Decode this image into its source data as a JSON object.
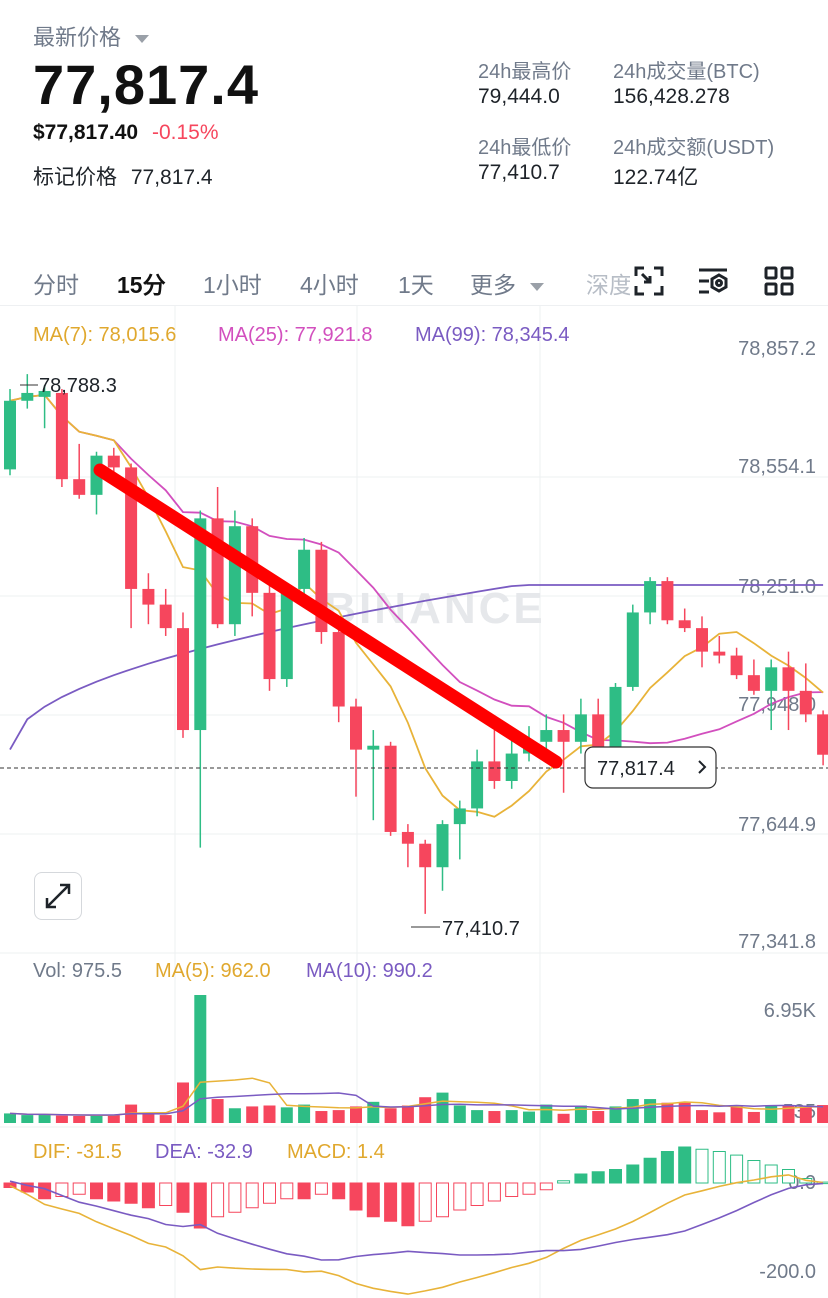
{
  "header": {
    "label": "最新价格",
    "last_price": "77,817.4",
    "usd_price": "$77,817.40",
    "change_pct": "-0.15%",
    "mark_label": "标记价格",
    "mark_price": "77,817.4"
  },
  "stats": {
    "high_label": "24h最高价",
    "high_value": "79,444.0",
    "vol_btc_label": "24h成交量(BTC)",
    "vol_btc_value": "156,428.278",
    "low_label": "24h最低价",
    "low_value": "77,410.7",
    "vol_usdt_label": "24h成交额(USDT)",
    "vol_usdt_value": "122.74亿"
  },
  "tabs": {
    "t1": "分时",
    "t2": "15分",
    "t3": "1小时",
    "t4": "4小时",
    "t5": "1天",
    "more": "更多",
    "depth": "深度"
  },
  "icons": [
    "fullscreen-icon",
    "indicator-settings-icon",
    "layout-grid-icon",
    "expand-icon",
    "chevron-right-icon",
    "caret-down-icon"
  ],
  "colors": {
    "up": "#2ebd85",
    "down": "#f6465d",
    "ma_short": "#e8b339",
    "ma_mid": "#d24fbe",
    "ma_long": "#7a5bc2",
    "trendline": "#ff0000"
  },
  "watermark": "BINANCE",
  "chart_data": {
    "type": "candlestick",
    "price_axis_ticks": [
      "78,857.2",
      "78,554.1",
      "78,251.0",
      "77,948.0",
      "77,644.9",
      "77,341.8"
    ],
    "ma_legend": {
      "ma7": "MA(7): 78,015.6",
      "ma25": "MA(25): 77,921.8",
      "ma99": "MA(99): 78,345.4"
    },
    "high_marker": "78,788.3",
    "low_marker": "77,410.7",
    "current_price_tag": "77,817.4",
    "candles": [
      {
        "o": 78545,
        "h": 78750,
        "l": 78530,
        "c": 78720
      },
      {
        "o": 78720,
        "h": 78788,
        "l": 78700,
        "c": 78740
      },
      {
        "o": 78730,
        "h": 78760,
        "l": 78650,
        "c": 78745
      },
      {
        "o": 78740,
        "h": 78750,
        "l": 78500,
        "c": 78520
      },
      {
        "o": 78520,
        "h": 78610,
        "l": 78470,
        "c": 78480
      },
      {
        "o": 78480,
        "h": 78590,
        "l": 78430,
        "c": 78580
      },
      {
        "o": 78580,
        "h": 78600,
        "l": 78520,
        "c": 78550
      },
      {
        "o": 78550,
        "h": 78560,
        "l": 78140,
        "c": 78240
      },
      {
        "o": 78240,
        "h": 78280,
        "l": 78150,
        "c": 78200
      },
      {
        "o": 78200,
        "h": 78240,
        "l": 78120,
        "c": 78140
      },
      {
        "o": 78140,
        "h": 78180,
        "l": 77860,
        "c": 77880
      },
      {
        "o": 77880,
        "h": 78440,
        "l": 77580,
        "c": 78420
      },
      {
        "o": 78420,
        "h": 78500,
        "l": 78140,
        "c": 78150
      },
      {
        "o": 78150,
        "h": 78440,
        "l": 78120,
        "c": 78400
      },
      {
        "o": 78400,
        "h": 78420,
        "l": 78170,
        "c": 78230
      },
      {
        "o": 78230,
        "h": 78280,
        "l": 77980,
        "c": 78010
      },
      {
        "o": 78010,
        "h": 78250,
        "l": 77990,
        "c": 78240
      },
      {
        "o": 78240,
        "h": 78370,
        "l": 78220,
        "c": 78340
      },
      {
        "o": 78340,
        "h": 78360,
        "l": 78100,
        "c": 78130
      },
      {
        "o": 78130,
        "h": 78150,
        "l": 77900,
        "c": 77940
      },
      {
        "o": 77940,
        "h": 77960,
        "l": 77710,
        "c": 77830
      },
      {
        "o": 77830,
        "h": 77880,
        "l": 77650,
        "c": 77840
      },
      {
        "o": 77840,
        "h": 77850,
        "l": 77610,
        "c": 77620
      },
      {
        "o": 77620,
        "h": 77640,
        "l": 77530,
        "c": 77590
      },
      {
        "o": 77590,
        "h": 77600,
        "l": 77411,
        "c": 77530
      },
      {
        "o": 77530,
        "h": 77650,
        "l": 77470,
        "c": 77640
      },
      {
        "o": 77640,
        "h": 77700,
        "l": 77550,
        "c": 77680
      },
      {
        "o": 77680,
        "h": 77830,
        "l": 77660,
        "c": 77800
      },
      {
        "o": 77800,
        "h": 77880,
        "l": 77730,
        "c": 77750
      },
      {
        "o": 77750,
        "h": 77860,
        "l": 77730,
        "c": 77820
      },
      {
        "o": 77820,
        "h": 77890,
        "l": 77800,
        "c": 77850
      },
      {
        "o": 77850,
        "h": 77920,
        "l": 77810,
        "c": 77880
      },
      {
        "o": 77880,
        "h": 77920,
        "l": 77720,
        "c": 77850
      },
      {
        "o": 77850,
        "h": 77960,
        "l": 77820,
        "c": 77920
      },
      {
        "o": 77920,
        "h": 77960,
        "l": 77810,
        "c": 77830
      },
      {
        "o": 77830,
        "h": 78000,
        "l": 77810,
        "c": 77990
      },
      {
        "o": 77990,
        "h": 78200,
        "l": 77980,
        "c": 78180
      },
      {
        "o": 78180,
        "h": 78270,
        "l": 78150,
        "c": 78260
      },
      {
        "o": 78260,
        "h": 78270,
        "l": 78150,
        "c": 78160
      },
      {
        "o": 78160,
        "h": 78190,
        "l": 78130,
        "c": 78140
      },
      {
        "o": 78140,
        "h": 78170,
        "l": 78040,
        "c": 78080
      },
      {
        "o": 78080,
        "h": 78120,
        "l": 78050,
        "c": 78070
      },
      {
        "o": 78070,
        "h": 78090,
        "l": 78010,
        "c": 78020
      },
      {
        "o": 78020,
        "h": 78060,
        "l": 77970,
        "c": 77980
      },
      {
        "o": 77980,
        "h": 78060,
        "l": 77880,
        "c": 78040
      },
      {
        "o": 78040,
        "h": 78080,
        "l": 77880,
        "c": 77980
      },
      {
        "o": 77980,
        "h": 78050,
        "l": 77900,
        "c": 77920
      },
      {
        "o": 77920,
        "h": 77930,
        "l": 77790,
        "c": 77817
      }
    ],
    "volume_legend": {
      "vol": "Vol: 975.5",
      "ma5": "MA(5): 962.0",
      "ma10": "MA(10): 990.2"
    },
    "volume_axis_ticks": [
      "6.95K",
      "535"
    ],
    "volume": [
      520,
      430,
      450,
      400,
      380,
      420,
      430,
      1000,
      500,
      430,
      2200,
      6950,
      1300,
      800,
      900,
      950,
      850,
      1000,
      650,
      700,
      900,
      1150,
      800,
      950,
      1400,
      1650,
      950,
      700,
      650,
      700,
      620,
      1000,
      500,
      950,
      650,
      900,
      1300,
      1300,
      1100,
      1100,
      700,
      580,
      900,
      600,
      975,
      975,
      900,
      975
    ],
    "macd_legend": {
      "dif": "DIF: -31.5",
      "dea": "DEA: -32.9",
      "macd": "MACD: 1.4"
    },
    "macd_axis_ticks": [
      "0.0",
      "-200.0"
    ],
    "macd_hist": [
      -10,
      -20,
      -35,
      -30,
      -25,
      -35,
      -40,
      -45,
      -55,
      -50,
      -65,
      -100,
      -75,
      -65,
      -55,
      -45,
      -35,
      -35,
      -25,
      -35,
      -60,
      -75,
      -85,
      -95,
      -85,
      -75,
      -60,
      -50,
      -40,
      -30,
      -25,
      -15,
      5,
      20,
      25,
      30,
      40,
      55,
      70,
      80,
      75,
      70,
      62,
      50,
      40,
      30,
      10,
      2
    ]
  }
}
